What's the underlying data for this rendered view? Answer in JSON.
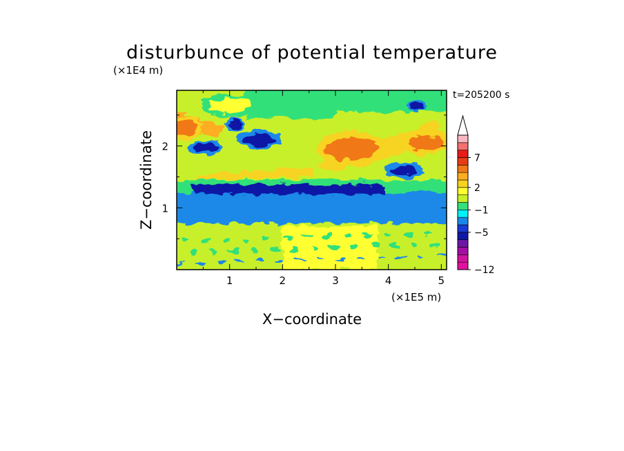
{
  "chart_data": {
    "type": "heatmap",
    "title": "disturbunce of potential temperature",
    "time_label": "t=205200 s",
    "xlabel": "X−coordinate",
    "ylabel": "Z−coordinate",
    "x_unit_label": "(×1E5 m)",
    "y_unit_label": "(×1E4 m)",
    "xlim": [
      0,
      5.1
    ],
    "ylim": [
      0,
      2.9
    ],
    "x_ticks": [
      1,
      2,
      3,
      4,
      5
    ],
    "y_ticks": [
      1,
      2
    ],
    "x_tick_labels": [
      "1",
      "2",
      "3",
      "4",
      "5"
    ],
    "y_tick_labels": [
      "1",
      "2"
    ],
    "colorbar": {
      "levels_colors": [
        "#e2109e",
        "#d0149f",
        "#a30fa3",
        "#6e16a3",
        "#1019a5",
        "#1a3ad4",
        "#1a88e8",
        "#00f2f8",
        "#33e07a",
        "#c8f02a",
        "#ffff30",
        "#f7d320",
        "#ffad20",
        "#f07818",
        "#e83c14",
        "#e81a1a",
        "#f47070",
        "#f8b8c0"
      ],
      "over_color": "#ffffff",
      "labels": [
        "−12",
        "−5",
        "−1",
        "2",
        "7"
      ],
      "label_levels": [
        0,
        5,
        8,
        11,
        15
      ]
    },
    "field_notes": "Filled contours of potential temperature disturbance over X∈[0,5.1]×10^5 m, Z∈[0,2.9]×10^4 m; negative band (~−5) near Z=1.3, cyan band Z≈0.8–1.2, warm bands tilting upward to the right above Z≈1.6.",
    "features": [
      {
        "kind": "band",
        "x0": 0,
        "x1": 5.1,
        "z0": 0.75,
        "z1": 1.25,
        "value": -1.5
      },
      {
        "kind": "band",
        "x0": 0.3,
        "x1": 3.9,
        "z0": 1.22,
        "z1": 1.38,
        "value": -5
      },
      {
        "kind": "blob",
        "x": 1.55,
        "z": 2.1,
        "rx": 0.3,
        "rz": 0.1,
        "value": -5
      },
      {
        "kind": "blob",
        "x": 0.55,
        "z": 1.97,
        "rx": 0.25,
        "rz": 0.07,
        "value": -5
      },
      {
        "kind": "blob",
        "x": 4.3,
        "z": 1.6,
        "rx": 0.28,
        "rz": 0.08,
        "value": -5
      },
      {
        "kind": "blob",
        "x": 4.55,
        "z": 2.65,
        "rx": 0.12,
        "rz": 0.07,
        "value": -5
      },
      {
        "kind": "blob",
        "x": 1.1,
        "z": 2.35,
        "rx": 0.15,
        "rz": 0.06,
        "value": -5
      },
      {
        "kind": "blob",
        "x": 3.3,
        "z": 1.95,
        "rx": 0.5,
        "rz": 0.18,
        "value": 5
      },
      {
        "kind": "blob",
        "x": 4.7,
        "z": 2.05,
        "rx": 0.35,
        "rz": 0.12,
        "value": 5
      },
      {
        "kind": "blob",
        "x": 0.15,
        "z": 2.3,
        "rx": 0.25,
        "rz": 0.12,
        "value": 5
      },
      {
        "kind": "blob",
        "x": 1.0,
        "z": 2.65,
        "rx": 0.4,
        "rz": 0.12,
        "value": 2
      }
    ]
  }
}
